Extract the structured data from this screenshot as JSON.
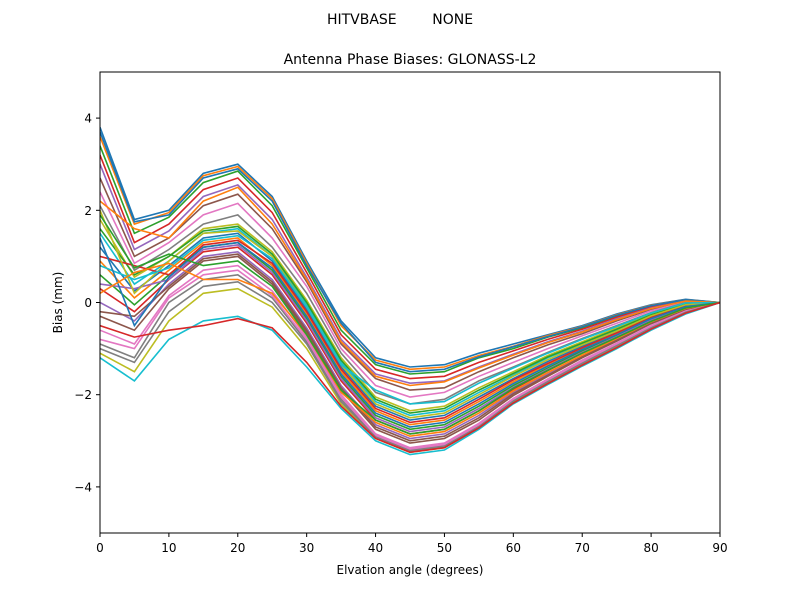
{
  "chart_data": {
    "type": "line",
    "suptitle": "HITVBASE        NONE",
    "title": "Antenna Phase Biases: GLONASS-L2",
    "xlabel": "Elvation angle (degrees)",
    "ylabel": "Bias (mm)",
    "xlim": [
      0,
      90
    ],
    "ylim": [
      -5,
      5
    ],
    "xticks": [
      0,
      10,
      20,
      30,
      40,
      50,
      60,
      70,
      80,
      90
    ],
    "yticks": [
      -4,
      -2,
      0,
      2,
      4
    ],
    "ytick_labels": [
      "−4",
      "−2",
      "0",
      "2",
      "4"
    ],
    "grid": false,
    "legend": false,
    "x": [
      0,
      5,
      10,
      15,
      20,
      25,
      30,
      35,
      40,
      45,
      50,
      55,
      60,
      65,
      70,
      75,
      80,
      85,
      90
    ],
    "colors": [
      "#1f77b4",
      "#ff7f0e",
      "#2ca02c",
      "#d62728",
      "#9467bd",
      "#8c564b",
      "#e377c2",
      "#7f7f7f",
      "#bcbd22",
      "#17becf"
    ],
    "series": [
      {
        "values": [
          3.8,
          1.8,
          2.0,
          2.8,
          3.0,
          2.3,
          0.9,
          -0.4,
          -1.2,
          -1.4,
          -1.35,
          -1.1,
          -0.9,
          -0.7,
          -0.5,
          -0.25,
          -0.05,
          0.07,
          0.0
        ]
      },
      {
        "values": [
          3.6,
          1.7,
          1.95,
          2.75,
          2.95,
          2.25,
          0.85,
          -0.5,
          -1.25,
          -1.45,
          -1.4,
          -1.15,
          -0.95,
          -0.72,
          -0.52,
          -0.27,
          -0.06,
          0.06,
          0.0
        ]
      },
      {
        "values": [
          3.4,
          1.5,
          1.85,
          2.6,
          2.85,
          2.1,
          0.75,
          -0.6,
          -1.35,
          -1.55,
          -1.5,
          -1.2,
          -1.0,
          -0.75,
          -0.55,
          -0.3,
          -0.08,
          0.05,
          0.0
        ]
      },
      {
        "values": [
          3.2,
          1.3,
          1.7,
          2.45,
          2.7,
          1.95,
          0.65,
          -0.7,
          -1.45,
          -1.65,
          -1.6,
          -1.3,
          -1.05,
          -0.8,
          -0.58,
          -0.32,
          -0.1,
          0.04,
          0.0
        ]
      },
      {
        "values": [
          3.0,
          1.15,
          1.55,
          2.3,
          2.55,
          1.8,
          0.55,
          -0.8,
          -1.55,
          -1.75,
          -1.7,
          -1.4,
          -1.12,
          -0.85,
          -0.62,
          -0.35,
          -0.12,
          0.03,
          0.0
        ]
      },
      {
        "values": [
          2.7,
          1.0,
          1.4,
          2.1,
          2.35,
          1.6,
          0.45,
          -0.9,
          -1.65,
          -1.9,
          -1.85,
          -1.5,
          -1.2,
          -0.92,
          -0.68,
          -0.4,
          -0.15,
          0.02,
          0.0
        ]
      },
      {
        "values": [
          2.4,
          0.85,
          1.3,
          1.9,
          2.15,
          1.4,
          0.35,
          -1.0,
          -1.8,
          -2.05,
          -1.95,
          -1.6,
          -1.3,
          -1.0,
          -0.72,
          -0.45,
          -0.18,
          0.01,
          0.0
        ]
      },
      {
        "values": [
          2.1,
          0.7,
          1.15,
          1.7,
          1.9,
          1.2,
          0.2,
          -1.1,
          -1.95,
          -2.2,
          -2.1,
          -1.7,
          -1.4,
          -1.08,
          -0.78,
          -0.5,
          -0.22,
          0.0,
          0.0
        ]
      },
      {
        "values": [
          1.8,
          0.55,
          1.0,
          1.6,
          1.7,
          1.1,
          0.05,
          -1.2,
          -2.05,
          -2.35,
          -2.25,
          -1.85,
          -1.5,
          -1.15,
          -0.85,
          -0.55,
          -0.25,
          -0.02,
          0.0
        ]
      },
      {
        "values": [
          1.5,
          0.4,
          0.9,
          1.5,
          1.6,
          1.0,
          -0.05,
          -1.3,
          -2.15,
          -2.45,
          -2.35,
          -1.95,
          -1.58,
          -1.2,
          -0.9,
          -0.6,
          -0.28,
          -0.04,
          0.0
        ]
      },
      {
        "values": [
          1.2,
          0.25,
          0.8,
          1.4,
          1.5,
          0.9,
          -0.15,
          -1.4,
          -2.25,
          -2.55,
          -2.45,
          -2.05,
          -1.65,
          -1.28,
          -0.95,
          -0.64,
          -0.3,
          -0.06,
          0.0
        ]
      },
      {
        "values": [
          0.9,
          0.1,
          0.7,
          1.3,
          1.4,
          0.8,
          -0.25,
          -1.5,
          -2.35,
          -2.65,
          -2.55,
          -2.15,
          -1.72,
          -1.35,
          -1.0,
          -0.68,
          -0.33,
          -0.08,
          0.0
        ]
      },
      {
        "values": [
          0.6,
          -0.05,
          0.6,
          1.2,
          1.3,
          0.7,
          -0.35,
          -1.6,
          -2.45,
          -2.75,
          -2.65,
          -2.25,
          -1.8,
          -1.42,
          -1.05,
          -0.72,
          -0.36,
          -0.1,
          0.0
        ]
      },
      {
        "values": [
          0.3,
          -0.2,
          0.5,
          1.1,
          1.2,
          0.6,
          -0.45,
          -1.7,
          -2.55,
          -2.85,
          -2.75,
          -2.35,
          -1.88,
          -1.48,
          -1.1,
          -0.76,
          -0.4,
          -0.12,
          0.0
        ]
      },
      {
        "values": [
          0.0,
          -0.4,
          0.4,
          1.0,
          1.1,
          0.5,
          -0.55,
          -1.8,
          -2.65,
          -2.95,
          -2.85,
          -2.45,
          -1.95,
          -1.55,
          -1.15,
          -0.8,
          -0.43,
          -0.14,
          0.0
        ]
      },
      {
        "values": [
          -0.3,
          -0.6,
          0.3,
          0.9,
          1.0,
          0.4,
          -0.65,
          -1.9,
          -2.75,
          -3.05,
          -2.95,
          -2.55,
          -2.02,
          -1.6,
          -1.2,
          -0.84,
          -0.46,
          -0.16,
          0.0
        ]
      },
      {
        "values": [
          -0.6,
          -0.9,
          0.15,
          0.7,
          0.8,
          0.25,
          -0.75,
          -2.0,
          -2.85,
          -3.15,
          -3.05,
          -2.62,
          -2.08,
          -1.66,
          -1.25,
          -0.88,
          -0.5,
          -0.18,
          0.0
        ]
      },
      {
        "values": [
          -0.9,
          -1.2,
          0.0,
          0.5,
          0.6,
          0.1,
          -0.85,
          -2.1,
          -2.9,
          -3.2,
          -3.1,
          -2.68,
          -2.12,
          -1.7,
          -1.3,
          -0.92,
          -0.53,
          -0.2,
          0.0
        ]
      },
      {
        "values": [
          -1.1,
          -1.5,
          -0.4,
          0.2,
          0.3,
          -0.1,
          -1.0,
          -2.2,
          -2.95,
          -3.25,
          -3.15,
          -2.72,
          -2.16,
          -1.74,
          -1.34,
          -0.96,
          -0.56,
          -0.22,
          0.0
        ]
      },
      {
        "values": [
          -1.2,
          -1.7,
          -0.8,
          -0.4,
          -0.3,
          -0.6,
          -1.4,
          -2.3,
          -3.0,
          -3.3,
          -3.2,
          -2.75,
          -2.2,
          -1.78,
          -1.38,
          -1.0,
          -0.6,
          -0.25,
          0.0
        ]
      },
      {
        "values": [
          3.7,
          1.75,
          1.9,
          2.7,
          2.9,
          2.2,
          0.8,
          -0.45,
          -1.3,
          -1.5,
          -1.45,
          -1.18,
          -0.96,
          -0.74,
          -0.53,
          -0.28,
          -0.07,
          0.06,
          0.0
        ]
      },
      {
        "values": [
          2.2,
          1.6,
          1.4,
          2.2,
          2.5,
          1.7,
          0.5,
          -0.85,
          -1.6,
          -1.8,
          -1.72,
          -1.42,
          -1.14,
          -0.87,
          -0.64,
          -0.37,
          -0.13,
          0.03,
          0.0
        ]
      },
      {
        "values": [
          1.6,
          0.6,
          1.0,
          1.55,
          1.65,
          1.05,
          0.0,
          -1.25,
          -2.1,
          -2.4,
          -2.3,
          -1.9,
          -1.54,
          -1.18,
          -0.88,
          -0.58,
          -0.27,
          -0.03,
          0.0
        ]
      },
      {
        "values": [
          1.0,
          0.8,
          0.6,
          1.25,
          1.35,
          0.85,
          -0.2,
          -1.45,
          -2.3,
          -2.6,
          -2.5,
          -2.1,
          -1.68,
          -1.32,
          -0.98,
          -0.66,
          -0.32,
          -0.07,
          0.0
        ]
      },
      {
        "values": [
          0.4,
          0.3,
          0.5,
          1.15,
          1.25,
          0.65,
          -0.4,
          -1.65,
          -2.5,
          -2.8,
          -2.7,
          -2.3,
          -1.84,
          -1.45,
          -1.08,
          -0.74,
          -0.38,
          -0.11,
          0.0
        ]
      },
      {
        "values": [
          -0.2,
          -0.3,
          0.35,
          0.95,
          1.05,
          0.45,
          -0.6,
          -1.85,
          -2.7,
          -3.0,
          -2.9,
          -2.5,
          -1.98,
          -1.58,
          -1.18,
          -0.82,
          -0.45,
          -0.15,
          0.0
        ]
      },
      {
        "values": [
          -0.8,
          -1.0,
          0.1,
          0.6,
          0.7,
          0.15,
          -0.8,
          -2.05,
          -2.88,
          -3.18,
          -3.08,
          -2.65,
          -2.1,
          -1.68,
          -1.28,
          -0.9,
          -0.52,
          -0.19,
          0.0
        ]
      },
      {
        "values": [
          -1.0,
          -1.3,
          -0.2,
          0.35,
          0.45,
          0.0,
          -0.9,
          -2.15,
          -2.92,
          -3.22,
          -3.12,
          -2.7,
          -2.14,
          -1.72,
          -1.32,
          -0.94,
          -0.55,
          -0.21,
          0.0
        ]
      },
      {
        "values": [
          2.0,
          0.2,
          0.9,
          1.5,
          1.55,
          1.0,
          -0.1,
          -1.35,
          -2.2,
          -2.5,
          -2.4,
          -2.0,
          -1.6,
          -1.24,
          -0.92,
          -0.62,
          -0.29,
          -0.05,
          0.0
        ]
      },
      {
        "values": [
          0.8,
          0.5,
          0.75,
          1.35,
          1.45,
          0.95,
          -0.1,
          -1.35,
          -1.9,
          -2.2,
          -2.15,
          -1.75,
          -1.42,
          -1.1,
          -0.8,
          -0.52,
          -0.23,
          -0.01,
          0.0
        ]
      },
      {
        "values": [
          1.4,
          -0.5,
          0.55,
          1.2,
          1.3,
          0.75,
          -0.3,
          -1.55,
          -2.4,
          -2.7,
          -2.6,
          -2.2,
          -1.76,
          -1.38,
          -1.02,
          -0.7,
          -0.35,
          -0.09,
          0.0
        ]
      },
      {
        "values": [
          0.2,
          0.65,
          0.85,
          0.5,
          0.5,
          0.2,
          -0.7,
          -1.95,
          -2.6,
          -2.9,
          -2.8,
          -2.4,
          -1.92,
          -1.52,
          -1.14,
          -0.78,
          -0.42,
          -0.13,
          0.0
        ]
      },
      {
        "values": [
          1.9,
          0.75,
          1.05,
          0.8,
          0.9,
          0.35,
          -0.7,
          -1.9,
          -2.55,
          -2.85,
          -2.75,
          -2.35,
          -1.86,
          -1.47,
          -1.1,
          -0.76,
          -0.41,
          -0.12,
          0.0
        ]
      },
      {
        "values": [
          -0.5,
          -0.75,
          -0.6,
          -0.5,
          -0.35,
          -0.55,
          -1.3,
          -2.25,
          -2.95,
          -3.25,
          -3.15,
          -2.72,
          -2.18,
          -1.76,
          -1.36,
          -0.98,
          -0.58,
          -0.23,
          0.0
        ]
      }
    ]
  }
}
